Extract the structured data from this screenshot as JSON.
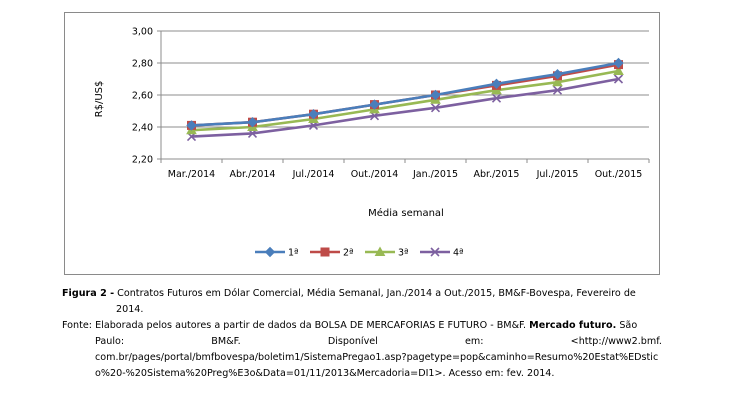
{
  "chart_data": {
    "type": "line",
    "categories": [
      "Mar./2014",
      "Abr./2014",
      "Jul./2014",
      "Out./2014",
      "Jan./2015",
      "Abr./2015",
      "Jul./2015",
      "Out./2015"
    ],
    "series": [
      {
        "name": "1ª",
        "color": "#4a7ebb",
        "marker": "diamond",
        "values": [
          2.41,
          2.43,
          2.48,
          2.54,
          2.6,
          2.67,
          2.73,
          2.8
        ]
      },
      {
        "name": "2ª",
        "color": "#be4b48",
        "marker": "square",
        "values": [
          2.41,
          2.43,
          2.48,
          2.54,
          2.6,
          2.66,
          2.72,
          2.79
        ]
      },
      {
        "name": "3ª",
        "color": "#98b954",
        "marker": "triangle",
        "values": [
          2.38,
          2.4,
          2.45,
          2.51,
          2.57,
          2.63,
          2.68,
          2.75
        ]
      },
      {
        "name": "4ª",
        "color": "#7d60a0",
        "marker": "x",
        "values": [
          2.34,
          2.36,
          2.41,
          2.47,
          2.52,
          2.58,
          2.63,
          2.7
        ]
      }
    ],
    "y_ticks": [
      "3,00",
      "2,80",
      "2,60",
      "2,40",
      "2,20"
    ],
    "ylim": [
      2.2,
      3.0
    ],
    "ylabel": "R$/US$",
    "xlabel": "Média semanal",
    "legend_position": "bottom",
    "grid": "horizontal"
  },
  "caption": {
    "figure_label": "Figura 2 -",
    "figure_text": "Contratos Futuros em Dólar Comercial, Média Semanal, Jan./2014 a Out./2015, BM&F-Bovespa, Fevereiro de",
    "figure_text_cont": "2014.",
    "source_label": "Fonte:",
    "source_text1": "Elaborada pelos autores a partir de dados da BOLSA DE MERCAFORIAS E FUTURO - BM&F.",
    "source_bold": "Mercado futuro.",
    "source_text2": "São",
    "src_w1": "Paulo:",
    "src_w2": "BM&F.",
    "src_w3": "Disponível",
    "src_w4": "em:",
    "src_w5": "<http://www2.bmf.",
    "source_line3": "com.br/pages/portal/bmfbovespa/boletim1/SistemaPregao1.asp?pagetype=pop&caminho=Resumo%20Estat%EDstic",
    "source_line4": "o%20-%20Sistema%20Preg%E3o&Data=01/11/2013&Mercadoria=DI1>. Acesso em: fev. 2014."
  }
}
